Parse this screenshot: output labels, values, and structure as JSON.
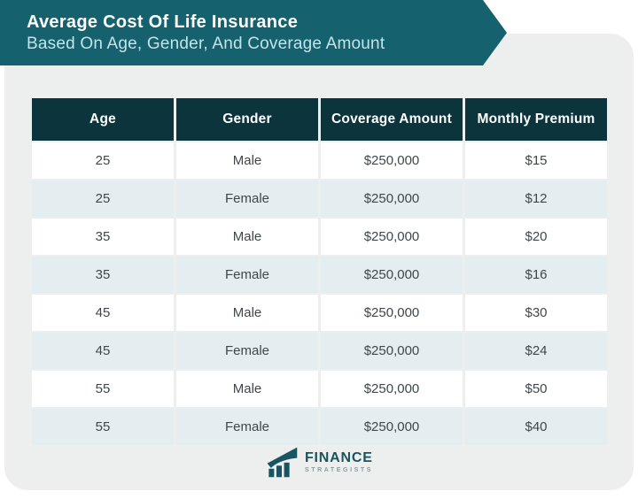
{
  "banner": {
    "title": "Average Cost Of Life Insurance",
    "subtitle": "Based On Age, Gender, And Coverage Amount",
    "bg_color": "#15616e",
    "title_color": "#ffffff",
    "subtitle_color": "#c5e3e9"
  },
  "table": {
    "columns": [
      "Age",
      "Gender",
      "Coverage Amount",
      "Monthly Premium"
    ],
    "rows": [
      [
        "25",
        "Male",
        "$250,000",
        "$15"
      ],
      [
        "25",
        "Female",
        "$250,000",
        "$12"
      ],
      [
        "35",
        "Male",
        "$250,000",
        "$20"
      ],
      [
        "35",
        "Female",
        "$250,000",
        "$16"
      ],
      [
        "45",
        "Male",
        "$250,000",
        "$30"
      ],
      [
        "45",
        "Female",
        "$250,000",
        "$24"
      ],
      [
        "55",
        "Male",
        "$250,000",
        "$50"
      ],
      [
        "55",
        "Female",
        "$250,000",
        "$40"
      ]
    ],
    "header_bg": "#0b343d",
    "row_alt_bg": "#e4eef0",
    "panel_bg": "#ecefee"
  },
  "logo": {
    "name": "FINANCE",
    "tagline": "STRATEGISTS",
    "icon": "bar-chart-growth-icon",
    "name_color": "#1a5460",
    "tagline_color": "#8f999b"
  },
  "chart_data": {
    "type": "table",
    "title": "Average Cost Of Life Insurance Based On Age, Gender, And Coverage Amount",
    "columns": [
      "Age",
      "Gender",
      "Coverage Amount",
      "Monthly Premium"
    ],
    "rows": [
      {
        "age": 25,
        "gender": "Male",
        "coverage_amount": "$250,000",
        "monthly_premium": "$15"
      },
      {
        "age": 25,
        "gender": "Female",
        "coverage_amount": "$250,000",
        "monthly_premium": "$12"
      },
      {
        "age": 35,
        "gender": "Male",
        "coverage_amount": "$250,000",
        "monthly_premium": "$20"
      },
      {
        "age": 35,
        "gender": "Female",
        "coverage_amount": "$250,000",
        "monthly_premium": "$16"
      },
      {
        "age": 45,
        "gender": "Male",
        "coverage_amount": "$250,000",
        "monthly_premium": "$30"
      },
      {
        "age": 45,
        "gender": "Female",
        "coverage_amount": "$250,000",
        "monthly_premium": "$24"
      },
      {
        "age": 55,
        "gender": "Male",
        "coverage_amount": "$250,000",
        "monthly_premium": "$50"
      },
      {
        "age": 55,
        "gender": "Female",
        "coverage_amount": "$250,000",
        "monthly_premium": "$40"
      }
    ]
  }
}
